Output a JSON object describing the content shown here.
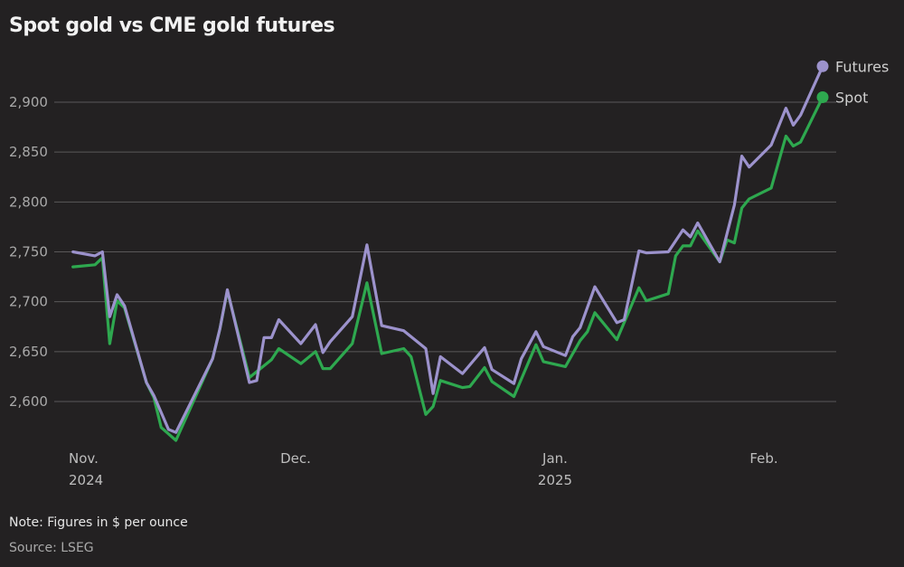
{
  "chart_data": {
    "type": "line",
    "title": "Spot gold vs CME gold futures",
    "xlabel": "",
    "ylabel": "",
    "ylim": [
      2550,
      2950
    ],
    "yticks": [
      "2,600",
      "2,650",
      "2,700",
      "2,750",
      "2,800",
      "2,850",
      "2,900"
    ],
    "ytick_values": [
      2600,
      2650,
      2700,
      2750,
      2800,
      2850,
      2900
    ],
    "xticks": [
      {
        "label": "Nov.",
        "year": "2024",
        "date": "2024-11-01"
      },
      {
        "label": "Dec.",
        "year": "",
        "date": "2024-12-01"
      },
      {
        "label": "Jan.",
        "year": "2025",
        "date": "2025-01-01"
      },
      {
        "label": "Feb.",
        "year": "",
        "date": "2025-02-01"
      }
    ],
    "grid": true,
    "legend": "end-of-line labels, top-right",
    "series": [
      {
        "name": "Futures",
        "color": "#9c92cc",
        "points": [
          [
            "2024-10-30",
            2750
          ],
          [
            "2024-11-02",
            2746
          ],
          [
            "2024-11-03",
            2750
          ],
          [
            "2024-11-04",
            2685
          ],
          [
            "2024-11-05",
            2707
          ],
          [
            "2024-11-06",
            2696
          ],
          [
            "2024-11-09",
            2619
          ],
          [
            "2024-11-10",
            2606
          ],
          [
            "2024-11-12",
            2572
          ],
          [
            "2024-11-13",
            2569
          ],
          [
            "2024-11-18",
            2643
          ],
          [
            "2024-11-19",
            2673
          ],
          [
            "2024-11-20",
            2712
          ],
          [
            "2024-11-23",
            2619
          ],
          [
            "2024-11-24",
            2621
          ],
          [
            "2024-11-25",
            2664
          ],
          [
            "2024-11-26",
            2664
          ],
          [
            "2024-11-27",
            2682
          ],
          [
            "2024-11-30",
            2658
          ],
          [
            "2024-12-02",
            2677
          ],
          [
            "2024-12-03",
            2649
          ],
          [
            "2024-12-04",
            2660
          ],
          [
            "2024-12-07",
            2685
          ],
          [
            "2024-12-09",
            2757
          ],
          [
            "2024-12-11",
            2676
          ],
          [
            "2024-12-14",
            2671
          ],
          [
            "2024-12-17",
            2653
          ],
          [
            "2024-12-18",
            2608
          ],
          [
            "2024-12-19",
            2645
          ],
          [
            "2024-12-22",
            2628
          ],
          [
            "2024-12-25",
            2654
          ],
          [
            "2024-12-26",
            2632
          ],
          [
            "2024-12-29",
            2618
          ],
          [
            "2024-12-30",
            2643
          ],
          [
            "2025-01-01",
            2670
          ],
          [
            "2025-01-02",
            2655
          ],
          [
            "2025-01-05",
            2646
          ],
          [
            "2025-01-06",
            2665
          ],
          [
            "2025-01-07",
            2674
          ],
          [
            "2025-01-09",
            2715
          ],
          [
            "2025-01-12",
            2679
          ],
          [
            "2025-01-13",
            2682
          ],
          [
            "2025-01-15",
            2751
          ],
          [
            "2025-01-16",
            2749
          ],
          [
            "2025-01-19",
            2750
          ],
          [
            "2025-01-21",
            2772
          ],
          [
            "2025-01-22",
            2765
          ],
          [
            "2025-01-23",
            2779
          ],
          [
            "2025-01-26",
            2740
          ],
          [
            "2025-01-28",
            2797
          ],
          [
            "2025-01-29",
            2846
          ],
          [
            "2025-01-30",
            2835
          ],
          [
            "2025-02-02",
            2857
          ],
          [
            "2025-02-04",
            2894
          ],
          [
            "2025-02-05",
            2877
          ],
          [
            "2025-02-06",
            2887
          ],
          [
            "2025-02-09",
            2936
          ]
        ]
      },
      {
        "name": "Spot",
        "color": "#2ea84f",
        "points": [
          [
            "2024-10-30",
            2735
          ],
          [
            "2024-11-02",
            2737
          ],
          [
            "2024-11-03",
            2744
          ],
          [
            "2024-11-04",
            2658
          ],
          [
            "2024-11-05",
            2701
          ],
          [
            "2024-11-06",
            2694
          ],
          [
            "2024-11-09",
            2619
          ],
          [
            "2024-11-10",
            2604
          ],
          [
            "2024-11-11",
            2574
          ],
          [
            "2024-11-13",
            2561
          ],
          [
            "2024-11-18",
            2643
          ],
          [
            "2024-11-19",
            2673
          ],
          [
            "2024-11-20",
            2711
          ],
          [
            "2024-11-23",
            2624
          ],
          [
            "2024-11-26",
            2642
          ],
          [
            "2024-11-27",
            2653
          ],
          [
            "2024-11-30",
            2638
          ],
          [
            "2024-12-02",
            2650
          ],
          [
            "2024-12-03",
            2633
          ],
          [
            "2024-12-04",
            2633
          ],
          [
            "2024-12-07",
            2658
          ],
          [
            "2024-12-09",
            2719
          ],
          [
            "2024-12-11",
            2648
          ],
          [
            "2024-12-14",
            2653
          ],
          [
            "2024-12-15",
            2645
          ],
          [
            "2024-12-17",
            2587
          ],
          [
            "2024-12-18",
            2595
          ],
          [
            "2024-12-19",
            2621
          ],
          [
            "2024-12-22",
            2614
          ],
          [
            "2024-12-23",
            2615
          ],
          [
            "2024-12-25",
            2634
          ],
          [
            "2024-12-26",
            2620
          ],
          [
            "2024-12-29",
            2605
          ],
          [
            "2025-01-01",
            2657
          ],
          [
            "2025-01-02",
            2640
          ],
          [
            "2025-01-05",
            2635
          ],
          [
            "2025-01-07",
            2661
          ],
          [
            "2025-01-08",
            2670
          ],
          [
            "2025-01-09",
            2689
          ],
          [
            "2025-01-12",
            2662
          ],
          [
            "2025-01-15",
            2714
          ],
          [
            "2025-01-16",
            2701
          ],
          [
            "2025-01-19",
            2708
          ],
          [
            "2025-01-20",
            2746
          ],
          [
            "2025-01-21",
            2756
          ],
          [
            "2025-01-22",
            2756
          ],
          [
            "2025-01-23",
            2771
          ],
          [
            "2025-01-26",
            2740
          ],
          [
            "2025-01-27",
            2762
          ],
          [
            "2025-01-28",
            2759
          ],
          [
            "2025-01-29",
            2794
          ],
          [
            "2025-01-30",
            2803
          ],
          [
            "2025-02-02",
            2814
          ],
          [
            "2025-02-04",
            2866
          ],
          [
            "2025-02-05",
            2856
          ],
          [
            "2025-02-06",
            2860
          ],
          [
            "2025-02-09",
            2905
          ]
        ]
      }
    ]
  },
  "footer": {
    "note": "Note: Figures in $ per ounce",
    "source": "Source: LSEG"
  }
}
